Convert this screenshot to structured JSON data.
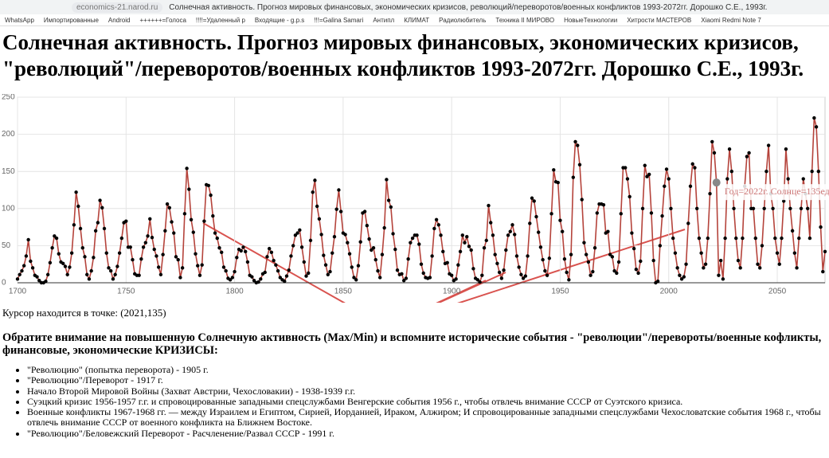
{
  "browser": {
    "url": "economics-21.narod.ru",
    "tab_title": "Солнечная активность. Прогноз мировых финансовых, экономических кризисов, революций/переворотов/военных конфликтов 1993-2072гг. Дорошко С.Е., 1993г.",
    "bookmarks": [
      "WhatsApp",
      "Импортированные",
      "Android",
      "++++++=Голоса",
      "!!!!=Удаленный р",
      "Входящие - g.p.s",
      "!!!=Galina Samari",
      "Антипл",
      "КЛИМАТ",
      "Радиолюбитель",
      "Техника II МИРОВО",
      "НовыеТехнологии",
      "Хитрости МАСТЕРОВ",
      "Xiaomi Redmi Note 7"
    ]
  },
  "header": {
    "title": "Солнечная активность. Прогноз мировых финансовых, экономических кризисов, \"революций\"/переворотов/военных конфликтов 1993-2072гг. Дорошко С.Е., 1993г."
  },
  "chart_data": {
    "type": "line",
    "color": "#b5433b",
    "point_color": "#000000",
    "grid": true,
    "xlim": [
      1700,
      2072
    ],
    "xticks": [
      1700,
      1750,
      1800,
      1850,
      1900,
      1950,
      2000,
      2050
    ],
    "ylim": [
      0,
      250
    ],
    "yticks": [
      0,
      50,
      100,
      150,
      200,
      250
    ],
    "tooltip": "Год=2022г. Солнце=135ед.",
    "x": [
      1700,
      1701,
      1702,
      1703,
      1704,
      1705,
      1706,
      1707,
      1708,
      1709,
      1710,
      1711,
      1712,
      1713,
      1714,
      1715,
      1716,
      1717,
      1718,
      1719,
      1720,
      1721,
      1722,
      1723,
      1724,
      1725,
      1726,
      1727,
      1728,
      1729,
      1730,
      1731,
      1732,
      1733,
      1734,
      1735,
      1736,
      1737,
      1738,
      1739,
      1740,
      1741,
      1742,
      1743,
      1744,
      1745,
      1746,
      1747,
      1748,
      1749,
      1750,
      1751,
      1752,
      1753,
      1754,
      1755,
      1756,
      1757,
      1758,
      1759,
      1760,
      1761,
      1762,
      1763,
      1764,
      1765,
      1766,
      1767,
      1768,
      1769,
      1770,
      1771,
      1772,
      1773,
      1774,
      1775,
      1776,
      1777,
      1778,
      1779,
      1780,
      1781,
      1782,
      1783,
      1784,
      1785,
      1786,
      1787,
      1788,
      1789,
      1790,
      1791,
      1792,
      1793,
      1794,
      1795,
      1796,
      1797,
      1798,
      1799,
      1800,
      1801,
      1802,
      1803,
      1804,
      1805,
      1806,
      1807,
      1808,
      1809,
      1810,
      1811,
      1812,
      1813,
      1814,
      1815,
      1816,
      1817,
      1818,
      1819,
      1820,
      1821,
      1822,
      1823,
      1824,
      1825,
      1826,
      1827,
      1828,
      1829,
      1830,
      1831,
      1832,
      1833,
      1834,
      1835,
      1836,
      1837,
      1838,
      1839,
      1840,
      1841,
      1842,
      1843,
      1844,
      1845,
      1846,
      1847,
      1848,
      1849,
      1850,
      1851,
      1852,
      1853,
      1854,
      1855,
      1856,
      1857,
      1858,
      1859,
      1860,
      1861,
      1862,
      1863,
      1864,
      1865,
      1866,
      1867,
      1868,
      1869,
      1870,
      1871,
      1872,
      1873,
      1874,
      1875,
      1876,
      1877,
      1878,
      1879,
      1880,
      1881,
      1882,
      1883,
      1884,
      1885,
      1886,
      1887,
      1888,
      1889,
      1890,
      1891,
      1892,
      1893,
      1894,
      1895,
      1896,
      1897,
      1898,
      1899,
      1900,
      1901,
      1902,
      1903,
      1904,
      1905,
      1906,
      1907,
      1908,
      1909,
      1910,
      1911,
      1912,
      1913,
      1914,
      1915,
      1916,
      1917,
      1918,
      1919,
      1920,
      1921,
      1922,
      1923,
      1924,
      1925,
      1926,
      1927,
      1928,
      1929,
      1930,
      1931,
      1932,
      1933,
      1934,
      1935,
      1936,
      1937,
      1938,
      1939,
      1940,
      1941,
      1942,
      1943,
      1944,
      1945,
      1946,
      1947,
      1948,
      1949,
      1950,
      1951,
      1952,
      1953,
      1954,
      1955,
      1956,
      1957,
      1958,
      1959,
      1960,
      1961,
      1962,
      1963,
      1964,
      1965,
      1966,
      1967,
      1968,
      1969,
      1970,
      1971,
      1972,
      1973,
      1974,
      1975,
      1976,
      1977,
      1978,
      1979,
      1980,
      1981,
      1982,
      1983,
      1984,
      1985,
      1986,
      1987,
      1988,
      1989,
      1990,
      1991,
      1992,
      1993,
      1994,
      1995,
      1996,
      1997,
      1998,
      1999,
      2000,
      2001,
      2002,
      2003,
      2004,
      2005,
      2006,
      2007,
      2008,
      2009,
      2010,
      2011,
      2012,
      2013,
      2014,
      2015,
      2016,
      2017,
      2018,
      2019,
      2020,
      2021,
      2022,
      2023,
      2024,
      2025,
      2026,
      2027,
      2028,
      2029,
      2030,
      2031,
      2032,
      2033,
      2034,
      2035,
      2036,
      2037,
      2038,
      2039,
      2040,
      2041,
      2042,
      2043,
      2044,
      2045,
      2046,
      2047,
      2048,
      2049,
      2050,
      2051,
      2052,
      2053,
      2054,
      2055,
      2056,
      2057,
      2058,
      2059,
      2060,
      2061,
      2062,
      2063,
      2064,
      2065,
      2066,
      2067,
      2068,
      2069,
      2070,
      2071,
      2072
    ],
    "values": [
      5,
      11,
      16,
      23,
      36,
      58,
      29,
      20,
      10,
      8,
      3,
      0,
      0,
      2,
      11,
      27,
      47,
      63,
      60,
      39,
      28,
      26,
      22,
      11,
      21,
      40,
      78,
      122,
      103,
      73,
      47,
      35,
      11,
      5,
      16,
      34,
      70,
      81,
      111,
      101,
      73,
      40,
      20,
      16,
      5,
      11,
      22,
      40,
      60,
      81,
      83,
      48,
      48,
      31,
      12,
      10,
      10,
      32,
      48,
      54,
      63,
      86,
      61,
      45,
      36,
      21,
      11,
      38,
      70,
      106,
      101,
      82,
      67,
      35,
      31,
      7,
      20,
      93,
      154,
      126,
      85,
      68,
      39,
      23,
      10,
      24,
      83,
      132,
      131,
      118,
      90,
      67,
      60,
      47,
      41,
      21,
      16,
      6,
      4,
      7,
      15,
      34,
      45,
      43,
      48,
      42,
      28,
      10,
      8,
      3,
      0,
      1,
      5,
      12,
      14,
      35,
      46,
      41,
      30,
      24,
      16,
      7,
      4,
      2,
      9,
      17,
      36,
      50,
      64,
      67,
      71,
      48,
      28,
      9,
      13,
      57,
      122,
      138,
      103,
      86,
      65,
      37,
      24,
      11,
      15,
      40,
      62,
      99,
      125,
      96,
      67,
      65,
      54,
      39,
      21,
      7,
      4,
      23,
      55,
      94,
      96,
      77,
      59,
      44,
      47,
      31,
      16,
      7,
      38,
      74,
      139,
      111,
      102,
      66,
      45,
      17,
      11,
      12,
      3,
      6,
      32,
      54,
      60,
      64,
      64,
      52,
      25,
      13,
      7,
      6,
      7,
      36,
      73,
      85,
      78,
      64,
      42,
      26,
      27,
      12,
      10,
      3,
      5,
      24,
      42,
      64,
      54,
      62,
      49,
      44,
      19,
      6,
      4,
      1,
      10,
      47,
      57,
      104,
      81,
      64,
      38,
      26,
      14,
      6,
      17,
      44,
      64,
      69,
      78,
      65,
      36,
      21,
      11,
      6,
      9,
      36,
      80,
      114,
      110,
      89,
      68,
      48,
      31,
      16,
      10,
      33,
      93,
      152,
      136,
      135,
      84,
      69,
      32,
      14,
      4,
      38,
      142,
      190,
      185,
      159,
      112,
      54,
      38,
      28,
      10,
      15,
      47,
      94,
      106,
      106,
      105,
      67,
      69,
      38,
      35,
      16,
      13,
      28,
      93,
      155,
      155,
      140,
      116,
      67,
      46,
      18,
      13,
      29,
      100,
      158,
      143,
      146,
      94,
      30,
      0,
      2,
      50,
      90,
      130,
      153,
      140,
      100,
      60,
      40,
      20,
      10,
      5,
      8,
      25,
      80,
      130,
      160,
      155,
      100,
      60,
      40,
      20,
      25,
      60,
      120,
      190,
      175,
      135,
      10,
      30,
      5,
      60,
      140,
      180,
      150,
      100,
      60,
      30,
      20,
      60,
      130,
      170,
      175,
      100,
      100,
      60,
      25,
      20,
      50,
      100,
      150,
      185,
      120,
      100,
      60,
      40,
      25,
      60,
      110,
      180,
      140,
      100,
      70,
      40,
      20,
      60,
      100,
      140,
      120,
      100,
      60,
      150,
      222,
      210,
      150,
      75,
      15,
      42
    ]
  },
  "cursor": "Курсор находится в точке: (2021,135)",
  "notice": "Обратите внимание на повышенную Солнечную активность (Max/Min) и вспомните исторические события - \"революции\"/перевороты/военные кофликты, финансовые, экономические КРИЗИСЫ:",
  "events": [
    "\"Революцию\" (попытка переворота) - 1905 г.",
    "\"Революцию\"/Переворот - 1917 г.",
    "Начало Второй Мировой Войны (Захват Австрии, Чехословакии) - 1938-1939 г.г.",
    "Суэцкий кризис 1956-1957 г.г. и спровоцированные западными спецслужбами Венгерские события 1956 г., чтобы отвлечь внимание СССР от Суэтского кризиса.",
    "Военные конфликты 1967-1968 гг. — между Израилем и Египтом, Сирией, Иорданией, Ираком, Алжиром; И спровоцированные западными спецслужбами Чехословатские события 1968 г., чтобы отвлечь внимание СССР от военного конфликта на Ближнем Востоке.",
    "\"Революцию\"/Беловежский Переворот - Расчленение/Развал СССР - 1991 г."
  ]
}
